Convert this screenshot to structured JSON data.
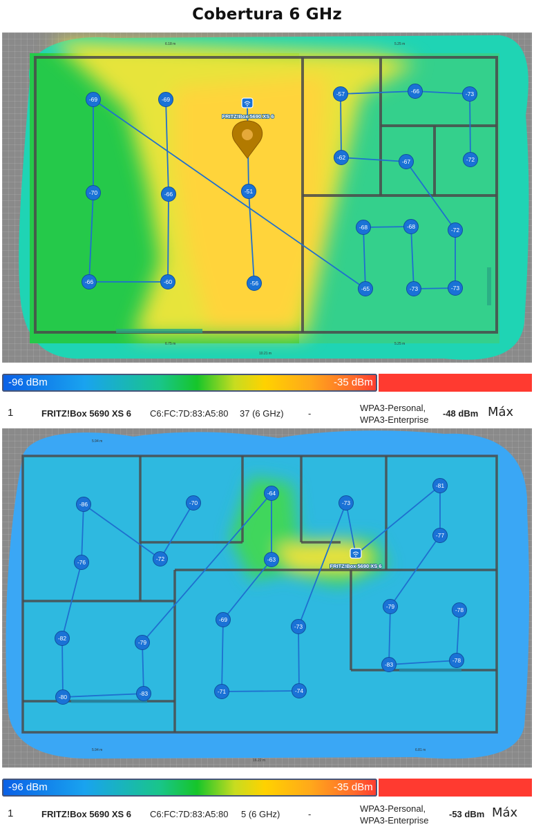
{
  "title": "Cobertura 6 GHz",
  "legend": {
    "low": "-96 dBm",
    "high": "-35 dBm"
  },
  "colors": {
    "background": "#ffffff",
    "node_fill": "#1a72d6",
    "node_link": "#1e6fcf",
    "wall": "#4a4a4a",
    "legend_red": "#ff3a30"
  },
  "maps": [
    {
      "router_label": "FRITZ!Box 5690 XS 6",
      "dimension_labels": [
        "6.18 m",
        "5.25 m",
        "6.75 m",
        "5.25 m",
        "10.21 m"
      ],
      "measurements": [
        "-69",
        "-69",
        "-57",
        "-66",
        "-73",
        "-62",
        "-67",
        "-72",
        "-70",
        "-66",
        "-51",
        "-68",
        "-68",
        "-72",
        "-66",
        "-60",
        "-56",
        "-65",
        "-73",
        "-73"
      ]
    },
    {
      "router_label": "FRITZ!Box 5690 XS 6",
      "dimension_labels": [
        "5.94 m",
        "5.94 m",
        "6.81 m",
        "16.22 m"
      ],
      "measurements": [
        "-64",
        "-81",
        "-86",
        "-70",
        "-73",
        "-77",
        "-72",
        "-63",
        "-76",
        "-79",
        "-78",
        "-69",
        "-73",
        "-82",
        "-79",
        "-83",
        "-78",
        "-80",
        "-83",
        "-71",
        "-74"
      ]
    }
  ],
  "networks": [
    {
      "index": "1",
      "name": "FRITZ!Box 5690 XS 6",
      "mac": "C6:FC:7D:83:A5:80",
      "channel": "37 (6 GHz)",
      "dash": "-",
      "security_1": "WPA3-Personal,",
      "security_2": "WPA3-Enterprise",
      "signal": "-48 dBm",
      "max_label": "Máx"
    },
    {
      "index": "1",
      "name": "FRITZ!Box 5690 XS 6",
      "mac": "C6:FC:7D:83:A5:80",
      "channel": "5 (6 GHz)",
      "dash": "-",
      "security_1": "WPA3-Personal,",
      "security_2": "WPA3-Enterprise",
      "signal": "-53 dBm",
      "max_label": "Máx"
    }
  ]
}
